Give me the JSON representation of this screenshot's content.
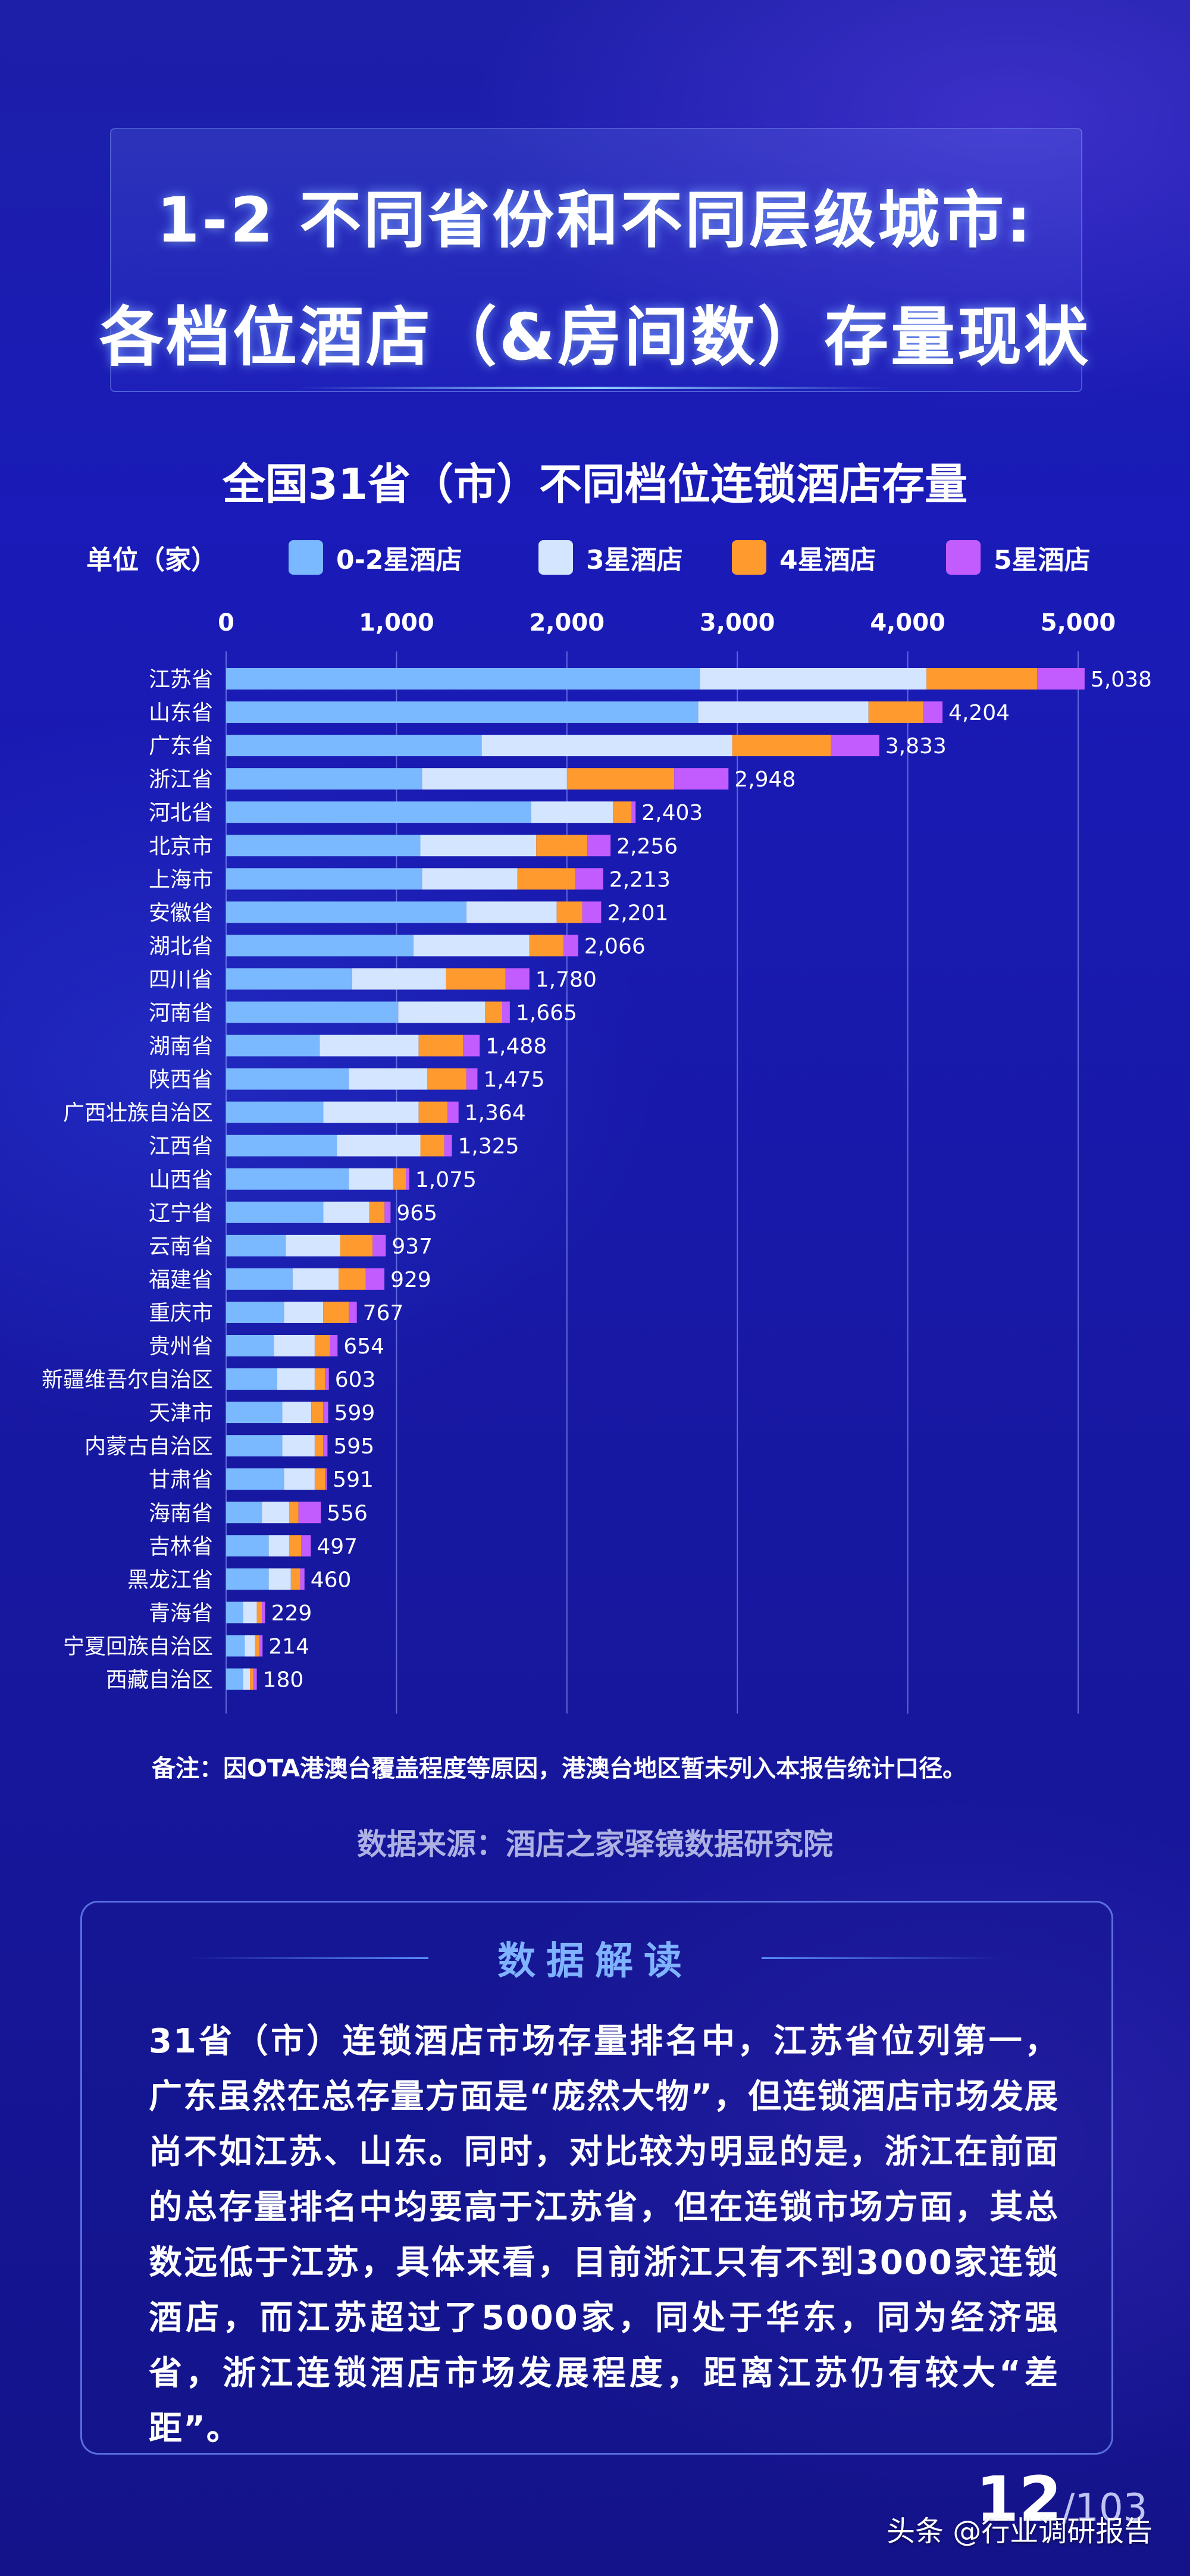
{
  "header": {
    "title_line1": "1-2 不同省份和不同层级城市:",
    "title_line2": "各档位酒店（&房间数）存量现状"
  },
  "legend": {
    "unit": "单位（家）",
    "items": [
      {
        "label": "0-2星酒店",
        "color": "#7ab8ff"
      },
      {
        "label": "3星酒店",
        "color": "#d4e6ff"
      },
      {
        "label": "4星酒店",
        "color": "#ff9a2e"
      },
      {
        "label": "5星酒店",
        "color": "#c35cff"
      }
    ]
  },
  "chart_data": {
    "type": "bar",
    "orientation": "horizontal",
    "stacked": true,
    "title": "全国31省（市）不同档位连锁酒店存量",
    "xlim": [
      0,
      5000
    ],
    "xticks": [
      0,
      1000,
      2000,
      3000,
      4000,
      5000
    ],
    "xtick_labels": [
      "0",
      "1,000",
      "2,000",
      "3,000",
      "4,000",
      "5,000"
    ],
    "grid": true,
    "categories": [
      "江苏省",
      "山东省",
      "广东省",
      "浙江省",
      "河北省",
      "北京市",
      "上海市",
      "安徽省",
      "湖北省",
      "四川省",
      "河南省",
      "湖南省",
      "陕西省",
      "广西壮族自治区",
      "江西省",
      "山西省",
      "辽宁省",
      "云南省",
      "福建省",
      "重庆市",
      "贵州省",
      "新疆维吾尔自治区",
      "天津市",
      "内蒙古自治区",
      "甘肃省",
      "海南省",
      "吉林省",
      "黑龙江省",
      "青海省",
      "宁夏回族自治区",
      "西藏自治区"
    ],
    "series": [
      {
        "name": "0-2星酒店",
        "values": [
          2780,
          2770,
          1500,
          1150,
          1790,
          1140,
          1150,
          1410,
          1100,
          740,
          1010,
          550,
          720,
          570,
          650,
          720,
          570,
          350,
          390,
          340,
          280,
          300,
          330,
          330,
          340,
          210,
          250,
          250,
          100,
          110,
          100
        ]
      },
      {
        "name": "3星酒店",
        "values": [
          1330,
          1000,
          1470,
          850,
          480,
          680,
          560,
          530,
          680,
          550,
          510,
          580,
          460,
          560,
          490,
          260,
          270,
          320,
          270,
          230,
          240,
          220,
          170,
          190,
          180,
          160,
          120,
          130,
          80,
          60,
          40
        ]
      },
      {
        "name": "4星酒店",
        "values": [
          650,
          320,
          580,
          630,
          110,
          300,
          340,
          150,
          200,
          350,
          100,
          260,
          230,
          170,
          140,
          75,
          90,
          190,
          160,
          150,
          90,
          60,
          70,
          50,
          60,
          55,
          70,
          55,
          30,
          25,
          20
        ]
      },
      {
        "name": "5星酒店",
        "values": [
          278,
          114,
          283,
          318,
          23,
          136,
          163,
          111,
          86,
          140,
          45,
          98,
          65,
          64,
          45,
          20,
          35,
          77,
          109,
          47,
          44,
          23,
          29,
          25,
          11,
          131,
          57,
          25,
          19,
          19,
          20
        ]
      }
    ],
    "totals": [
      5038,
      4204,
      3833,
      2948,
      2403,
      2256,
      2213,
      2201,
      2066,
      1780,
      1665,
      1488,
      1475,
      1364,
      1325,
      1075,
      965,
      937,
      929,
      767,
      654,
      603,
      599,
      595,
      591,
      556,
      497,
      460,
      229,
      214,
      180
    ],
    "total_labels": [
      "5,038",
      "4,204",
      "3,833",
      "2,948",
      "2,403",
      "2,256",
      "2,213",
      "2,201",
      "2,066",
      "1,780",
      "1,665",
      "1,488",
      "1,475",
      "1,364",
      "1,325",
      "1,075",
      "965",
      "937",
      "929",
      "767",
      "654",
      "603",
      "599",
      "595",
      "591",
      "556",
      "497",
      "460",
      "229",
      "214",
      "180"
    ]
  },
  "note": "备注：因OTA港澳台覆盖程度等原因，港澳台地区暂未列入本报告统计口径。",
  "source": "数据来源：酒店之家驿镜数据研究院",
  "interpretation": {
    "title": "数据解读",
    "text": "31省（市）连锁酒店市场存量排名中，江苏省位列第一，广东虽然在总存量方面是“庞然大物”，但连锁酒店市场发展尚不如江苏、山东。同时，对比较为明显的是，浙江在前面的总存量排名中均要高于江苏省，但在连锁市场方面，其总数远低于江苏，具体来看，目前浙江只有不到3000家连锁酒店，而江苏超过了5000家，同处于华东，同为经济强省，浙江连锁酒店市场发展程度，距离江苏仍有较大“差距”。"
  },
  "footer": {
    "page_current": "12",
    "page_total": "/103",
    "watermark": "头条 @行业调研报告"
  }
}
